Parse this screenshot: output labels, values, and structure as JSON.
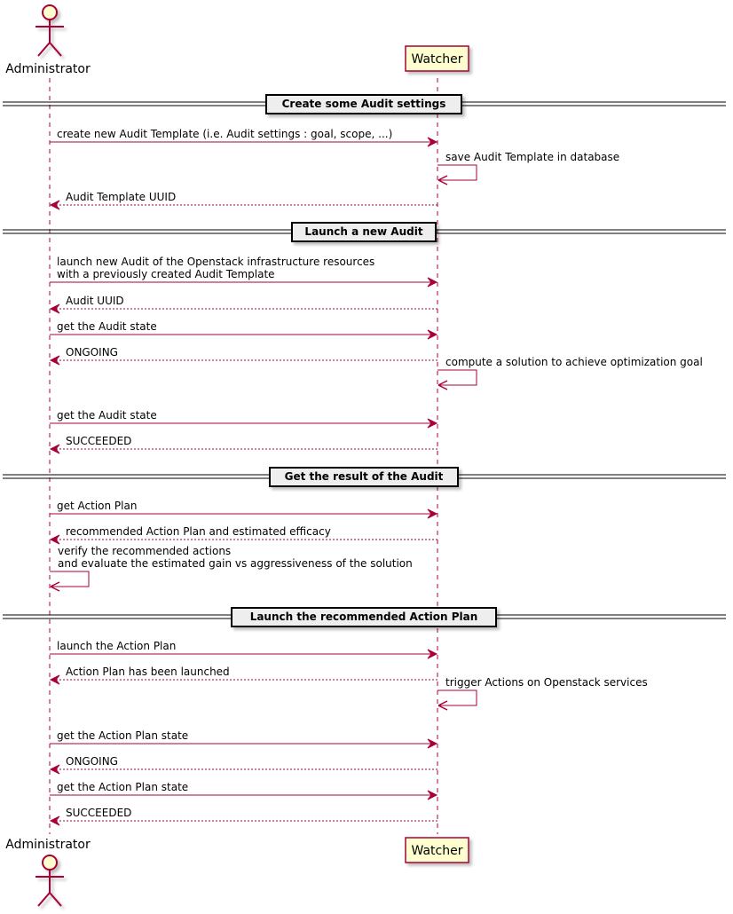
{
  "participants": {
    "administrator": {
      "name": "Administrator",
      "kind": "actor"
    },
    "watcher": {
      "name": "Watcher",
      "kind": "participant"
    }
  },
  "colors": {
    "line": "#A80036",
    "fill": "#FEFECE",
    "divider_fill": "#EEEEEE"
  },
  "dividers": [
    "Create some Audit settings",
    "Launch a new Audit",
    "Get the result of the Audit",
    "Launch the recommended Action Plan"
  ],
  "messages": [
    {
      "from": "administrator",
      "to": "watcher",
      "type": "sync",
      "lines": [
        "create new Audit Template (i.e. Audit settings : goal, scope, ...)"
      ]
    },
    {
      "from": "watcher",
      "to": "watcher",
      "type": "self",
      "lines": [
        "save Audit Template in database"
      ]
    },
    {
      "from": "watcher",
      "to": "administrator",
      "type": "return",
      "lines": [
        "Audit Template UUID"
      ]
    },
    {
      "from": "administrator",
      "to": "watcher",
      "type": "sync",
      "lines": [
        "launch new Audit of the Openstack infrastructure resources",
        "with a previously created Audit Template"
      ]
    },
    {
      "from": "watcher",
      "to": "administrator",
      "type": "return",
      "lines": [
        "Audit UUID"
      ]
    },
    {
      "from": "administrator",
      "to": "watcher",
      "type": "sync",
      "lines": [
        "get the Audit state"
      ]
    },
    {
      "from": "watcher",
      "to": "administrator",
      "type": "return",
      "lines": [
        "ONGOING"
      ]
    },
    {
      "from": "watcher",
      "to": "watcher",
      "type": "self",
      "lines": [
        "compute a solution to achieve optimization goal"
      ]
    },
    {
      "from": "administrator",
      "to": "watcher",
      "type": "sync",
      "lines": [
        "get the Audit state"
      ]
    },
    {
      "from": "watcher",
      "to": "administrator",
      "type": "return",
      "lines": [
        "SUCCEEDED"
      ]
    },
    {
      "from": "administrator",
      "to": "watcher",
      "type": "sync",
      "lines": [
        "get Action Plan"
      ]
    },
    {
      "from": "watcher",
      "to": "administrator",
      "type": "return",
      "lines": [
        "recommended Action Plan and estimated efficacy"
      ]
    },
    {
      "from": "administrator",
      "to": "administrator",
      "type": "self",
      "lines": [
        "verify the recommended actions",
        "and evaluate the estimated gain vs aggressiveness of the solution"
      ]
    },
    {
      "from": "administrator",
      "to": "watcher",
      "type": "sync",
      "lines": [
        "launch the Action Plan"
      ]
    },
    {
      "from": "watcher",
      "to": "administrator",
      "type": "return",
      "lines": [
        "Action Plan has been launched"
      ]
    },
    {
      "from": "watcher",
      "to": "watcher",
      "type": "self",
      "lines": [
        "trigger Actions on Openstack services"
      ]
    },
    {
      "from": "administrator",
      "to": "watcher",
      "type": "sync",
      "lines": [
        "get the Action Plan state"
      ]
    },
    {
      "from": "watcher",
      "to": "administrator",
      "type": "return",
      "lines": [
        "ONGOING"
      ]
    },
    {
      "from": "administrator",
      "to": "watcher",
      "type": "sync",
      "lines": [
        "get the Action Plan state"
      ]
    },
    {
      "from": "watcher",
      "to": "administrator",
      "type": "return",
      "lines": [
        "SUCCEEDED"
      ]
    }
  ]
}
